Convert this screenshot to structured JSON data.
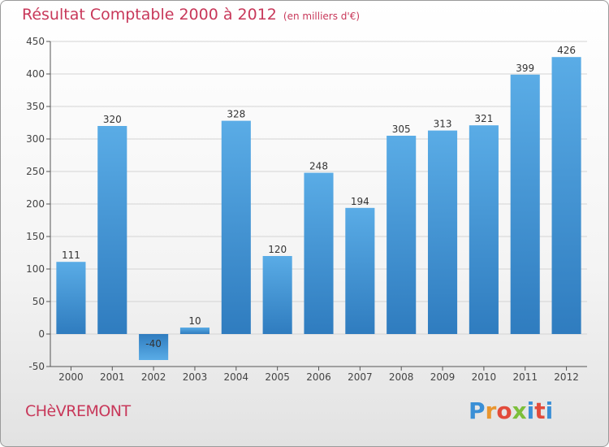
{
  "header": {
    "title": "Résultat Comptable 2000 à 2012",
    "subtitle": "(en milliers d'€)"
  },
  "footer": {
    "town": "CHèVREMONT",
    "brand": [
      "P",
      "r",
      "o",
      "x",
      "i",
      "t",
      "i"
    ]
  },
  "colors": {
    "bar_light": "#5aace6",
    "bar_dark": "#2f7cbf",
    "title": "#c8385a",
    "axis": "#555555"
  },
  "chart_data": {
    "type": "bar",
    "title": "Résultat Comptable 2000 à 2012",
    "subtitle": "(en milliers d'€)",
    "categories": [
      "2000",
      "2001",
      "2002",
      "2003",
      "2004",
      "2005",
      "2006",
      "2007",
      "2008",
      "2009",
      "2010",
      "2011",
      "2012"
    ],
    "values": [
      111,
      320,
      -40,
      10,
      328,
      120,
      248,
      194,
      305,
      313,
      321,
      399,
      426
    ],
    "data_labels": [
      "111",
      "320",
      "-40",
      "10",
      "328",
      "120",
      "248",
      "194",
      "305",
      "313",
      "321",
      "399",
      "426"
    ],
    "ylim": [
      -50,
      450
    ],
    "yticks": [
      -50,
      0,
      50,
      100,
      150,
      200,
      250,
      300,
      350,
      400,
      450
    ],
    "grid": true,
    "xlabel": "",
    "ylabel": ""
  }
}
